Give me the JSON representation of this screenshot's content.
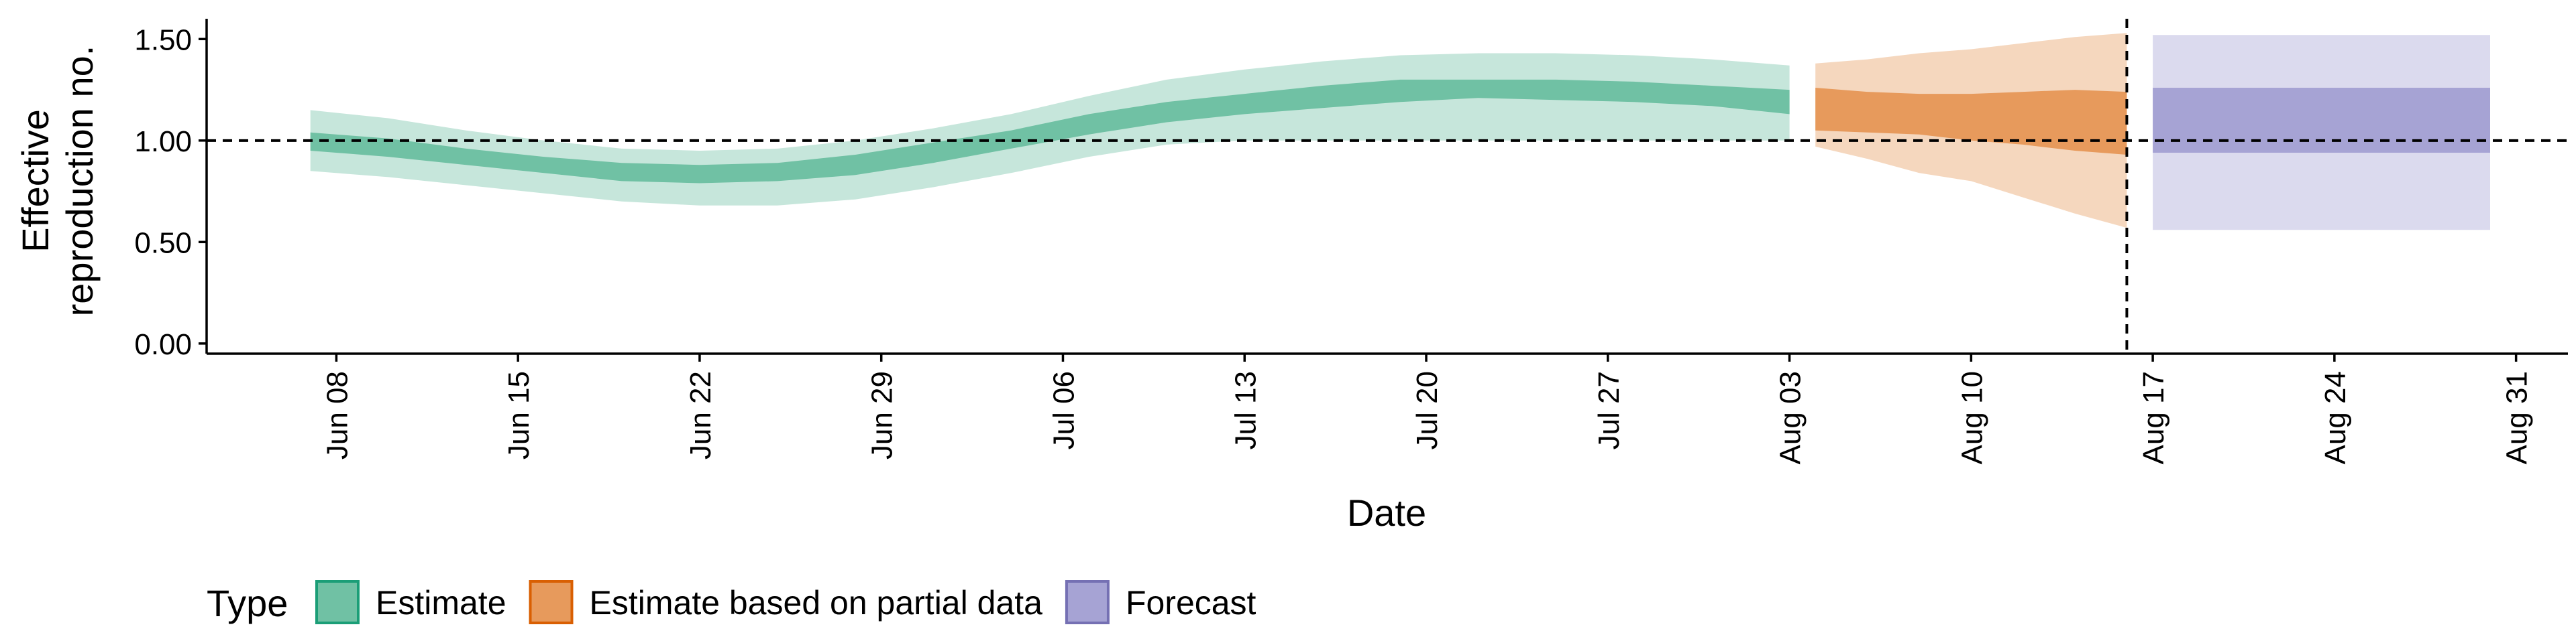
{
  "chart_data": {
    "type": "area",
    "xlabel": "Date",
    "ylabel_line1": "Effective",
    "ylabel_line2": "reproduction no.",
    "x_range": [
      "2020-06-03",
      "2020-09-02"
    ],
    "ylim": [
      -0.05,
      1.6
    ],
    "y_ticks": [
      0.0,
      0.5,
      1.0,
      1.5
    ],
    "y_tick_labels": [
      "0.00",
      "0.50",
      "1.00",
      "1.50"
    ],
    "x_ticks": [
      "2020-06-08",
      "2020-06-15",
      "2020-06-22",
      "2020-06-29",
      "2020-07-06",
      "2020-07-13",
      "2020-07-20",
      "2020-07-27",
      "2020-08-03",
      "2020-08-10",
      "2020-08-17",
      "2020-08-24",
      "2020-08-31"
    ],
    "x_tick_labels": [
      "Jun 08",
      "Jun 15",
      "Jun 22",
      "Jun 29",
      "Jul 06",
      "Jul 13",
      "Jul 20",
      "Jul 27",
      "Aug 03",
      "Aug 10",
      "Aug 17",
      "Aug 24",
      "Aug 31"
    ],
    "reference_line_y": 1.0,
    "forecast_date_line": "2020-08-16",
    "grid": false,
    "legend_position": "bottom-left",
    "legend_title": "Type",
    "series": [
      {
        "name": "Estimate",
        "color": "#1b9e77",
        "x": [
          "2020-06-07",
          "2020-06-10",
          "2020-06-13",
          "2020-06-16",
          "2020-06-19",
          "2020-06-22",
          "2020-06-25",
          "2020-06-28",
          "2020-07-01",
          "2020-07-04",
          "2020-07-07",
          "2020-07-10",
          "2020-07-13",
          "2020-07-16",
          "2020-07-19",
          "2020-07-22",
          "2020-07-25",
          "2020-07-28",
          "2020-07-31",
          "2020-08-03"
        ],
        "lower_90": [
          0.85,
          0.82,
          0.78,
          0.74,
          0.7,
          0.68,
          0.68,
          0.71,
          0.77,
          0.84,
          0.92,
          0.98,
          1.0,
          1.0,
          1.0,
          1.0,
          1.0,
          1.0,
          1.0,
          1.0
        ],
        "upper_90": [
          1.15,
          1.11,
          1.05,
          1.0,
          0.96,
          0.95,
          0.96,
          1.0,
          1.06,
          1.13,
          1.22,
          1.3,
          1.35,
          1.39,
          1.42,
          1.43,
          1.43,
          1.42,
          1.4,
          1.37
        ],
        "lower_50": [
          0.95,
          0.92,
          0.88,
          0.84,
          0.8,
          0.79,
          0.8,
          0.83,
          0.89,
          0.96,
          1.03,
          1.09,
          1.13,
          1.16,
          1.19,
          1.21,
          1.2,
          1.19,
          1.17,
          1.13
        ],
        "upper_50": [
          1.04,
          1.01,
          0.96,
          0.92,
          0.89,
          0.88,
          0.89,
          0.93,
          0.99,
          1.05,
          1.13,
          1.19,
          1.23,
          1.27,
          1.3,
          1.3,
          1.3,
          1.29,
          1.27,
          1.25
        ]
      },
      {
        "name": "Estimate based on partial data",
        "color": "#d95f02",
        "x": [
          "2020-08-04",
          "2020-08-06",
          "2020-08-08",
          "2020-08-10",
          "2020-08-12",
          "2020-08-14",
          "2020-08-16"
        ],
        "lower_90": [
          0.97,
          0.91,
          0.84,
          0.8,
          0.72,
          0.64,
          0.57
        ],
        "upper_90": [
          1.38,
          1.4,
          1.43,
          1.45,
          1.48,
          1.51,
          1.53
        ],
        "lower_50": [
          1.05,
          1.04,
          1.03,
          1.0,
          0.98,
          0.95,
          0.93
        ],
        "upper_50": [
          1.26,
          1.24,
          1.23,
          1.23,
          1.24,
          1.25,
          1.24
        ]
      },
      {
        "name": "Forecast",
        "color": "#7570b3",
        "x": [
          "2020-08-17",
          "2020-08-30"
        ],
        "lower_90": [
          0.56,
          0.56
        ],
        "upper_90": [
          1.52,
          1.52
        ],
        "lower_50": [
          0.94,
          0.94
        ],
        "upper_50": [
          1.26,
          1.26
        ]
      }
    ]
  },
  "colors": {
    "estimate_fill": "#70c1a4",
    "partial_fill": "#e79a5c",
    "forecast_fill": "#a6a3d4",
    "estimate_border": "#1b9e77",
    "partial_border": "#d95f02",
    "forecast_border": "#7570b3"
  }
}
